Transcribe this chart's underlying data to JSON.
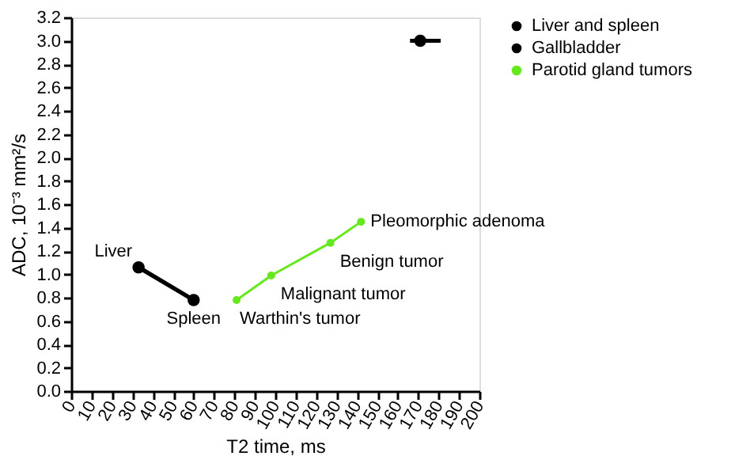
{
  "chart_data": {
    "type": "line",
    "xlabel": "T2 time, ms",
    "ylabel": "ADC, 10⁻³ mm²/s",
    "series": [
      {
        "name": "Liver and spleen",
        "color": "#000000",
        "x": [
          33,
          60
        ],
        "values": [
          1.06,
          0.78
        ]
      },
      {
        "name": "Gallbladder",
        "color": "#000000",
        "type": "scatter",
        "x": [
          171
        ],
        "values": [
          3.0
        ],
        "xerrors": [
          [
            166,
            181
          ]
        ]
      },
      {
        "name": "Parotid gland tumors",
        "color": "#66e81e",
        "x": [
          81,
          98,
          127,
          142
        ],
        "values": [
          0.78,
          0.99,
          1.27,
          1.45
        ]
      }
    ],
    "annotations": [
      {
        "text": "Liver",
        "x": 33,
        "y": 1.06
      },
      {
        "text": "Spleen",
        "x": 60,
        "y": 0.78
      },
      {
        "text": "Warthin's tumor",
        "x": 81,
        "y": 0.78
      },
      {
        "text": "Malignant tumor",
        "x": 98,
        "y": 0.99
      },
      {
        "text": "Benign tumor",
        "x": 127,
        "y": 1.27
      },
      {
        "text": "Pleomorphic adenoma",
        "x": 142,
        "y": 1.45
      }
    ],
    "xlim": [
      0,
      200
    ],
    "xticks": [
      0,
      10,
      20,
      30,
      40,
      50,
      60,
      70,
      80,
      90,
      100,
      110,
      120,
      130,
      140,
      150,
      160,
      170,
      180,
      190,
      200
    ],
    "ylim": [
      0,
      3.2
    ],
    "yticks": [
      {
        "value": 0,
        "label": "0.0"
      },
      0.2,
      0.4,
      0.6,
      0.8,
      {
        "value": 1,
        "label": "1.0"
      },
      1.2,
      1.4,
      1.6,
      1.8,
      {
        "value": 2,
        "label": "2.0"
      },
      2.2,
      2.4,
      2.6,
      2.8,
      {
        "value": 3,
        "label": "3.0"
      },
      3.2
    ],
    "grid": false,
    "legend": "top right",
    "marker": "circle",
    "line_style": "solid"
  }
}
